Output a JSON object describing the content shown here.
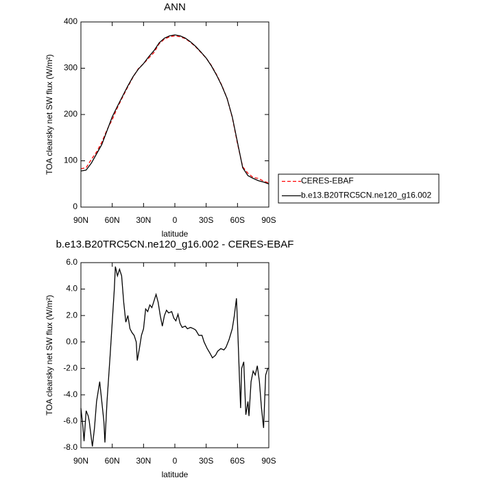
{
  "chart_data": [
    {
      "type": "line",
      "title": "ANN",
      "xlabel": "latitude",
      "ylabel": "TOA clearsky net SW flux (W/m²)",
      "x": [
        90,
        85,
        80,
        75,
        70,
        65,
        60,
        55,
        50,
        45,
        40,
        35,
        30,
        25,
        20,
        15,
        10,
        5,
        0,
        -5,
        -10,
        -15,
        -20,
        -25,
        -30,
        -35,
        -40,
        -45,
        -50,
        -55,
        -60,
        -65,
        -70,
        -75,
        -80,
        -85,
        -90
      ],
      "series": [
        {
          "name": "CERES-EBAF",
          "color": "#ff0000",
          "dash": true,
          "values": [
            83,
            85,
            103,
            119,
            140,
            167,
            189,
            215,
            238,
            260,
            281,
            299,
            310,
            322,
            334,
            353,
            363,
            368,
            370,
            368,
            364,
            356,
            346,
            334,
            322,
            306,
            286,
            263,
            235,
            194,
            137,
            87,
            73,
            64,
            62,
            56,
            52
          ]
        },
        {
          "name": "b.e13.B20TRC5CN.ne120_g16.002",
          "color": "#000000",
          "dash": false,
          "values": [
            78,
            80,
            95,
            115,
            135,
            165,
            195,
            218,
            240,
            262,
            282,
            298,
            310,
            325,
            338,
            355,
            365,
            370,
            372,
            370,
            365,
            357,
            347,
            335,
            322,
            305,
            285,
            262,
            235,
            195,
            140,
            85,
            68,
            62,
            57,
            54,
            50
          ]
        }
      ],
      "xlim": [
        90,
        -90
      ],
      "xticks": [
        {
          "value": 90,
          "label": "90N"
        },
        {
          "value": 60,
          "label": "60N"
        },
        {
          "value": 30,
          "label": "30N"
        },
        0,
        {
          "value": -30,
          "label": "30S"
        },
        {
          "value": -60,
          "label": "60S"
        },
        {
          "value": -90,
          "label": "90S"
        }
      ],
      "ylim": [
        0,
        400
      ],
      "yticks": [
        0,
        100,
        200,
        300,
        400
      ],
      "legend": "outside right"
    },
    {
      "type": "line",
      "title": "b.e13.B20TRC5CN.ne120_g16.002 - CERES-EBAF",
      "xlabel": "latitude",
      "ylabel": "TOA clearsky net SW flux (W/m²)",
      "x": [
        90,
        88,
        87,
        85,
        83,
        82,
        80,
        79,
        77,
        75,
        72,
        70,
        68,
        67,
        65,
        62,
        60,
        58,
        57,
        55,
        53,
        51,
        49,
        47,
        45,
        43,
        41,
        39,
        37,
        36,
        34,
        32,
        30,
        28,
        26,
        24,
        22,
        20,
        18,
        16,
        14,
        12,
        10,
        8,
        6,
        3,
        1,
        -1,
        -3,
        -5,
        -7,
        -10,
        -12,
        -15,
        -18,
        -20,
        -23,
        -26,
        -28,
        -31,
        -34,
        -36,
        -39,
        -41,
        -44,
        -47,
        -49,
        -52,
        -55,
        -57,
        -59,
        -60,
        -62,
        -63,
        -64,
        -66,
        -67,
        -68,
        -70,
        -71,
        -73,
        -75,
        -77,
        -79,
        -81,
        -83,
        -85,
        -87,
        -89,
        -90
      ],
      "series": [
        {
          "color": "#000000",
          "values": [
            -5.0,
            -6.5,
            -7.5,
            -5.2,
            -5.6,
            -6.0,
            -7.3,
            -7.9,
            -6.5,
            -4.5,
            -3.0,
            -4.5,
            -6.0,
            -7.6,
            -4.5,
            -1.0,
            1.5,
            4.0,
            5.7,
            5.0,
            5.5,
            5.0,
            3.0,
            1.5,
            2.0,
            1.0,
            0.7,
            0.5,
            0.0,
            -1.4,
            -0.5,
            0.5,
            1.0,
            2.5,
            2.3,
            2.8,
            2.6,
            3.1,
            3.6,
            3.0,
            2.0,
            1.2,
            2.0,
            2.4,
            2.2,
            2.3,
            1.8,
            1.6,
            2.1,
            1.4,
            1.1,
            1.2,
            1.0,
            1.1,
            1.0,
            0.9,
            0.5,
            0.5,
            0.0,
            -0.5,
            -0.9,
            -1.2,
            -1.0,
            -0.7,
            -0.5,
            -0.6,
            -0.4,
            0.2,
            1.0,
            2.0,
            3.3,
            1.5,
            -3.0,
            -5.0,
            -2.0,
            -1.5,
            -3.5,
            -5.5,
            -4.5,
            -5.6,
            -3.0,
            -2.2,
            -2.5,
            -1.8,
            -3.0,
            -5.0,
            -6.5,
            -2.5,
            -2.0,
            -2.0
          ]
        }
      ],
      "xlim": [
        90,
        -90
      ],
      "xticks": [
        {
          "value": 90,
          "label": "90N"
        },
        {
          "value": 60,
          "label": "60N"
        },
        {
          "value": 30,
          "label": "30N"
        },
        0,
        {
          "value": -30,
          "label": "30S"
        },
        {
          "value": -60,
          "label": "60S"
        },
        {
          "value": -90,
          "label": "90S"
        }
      ],
      "ylim": [
        -8,
        6
      ],
      "yticks": [
        {
          "value": -8,
          "label": "-8.0"
        },
        {
          "value": -6,
          "label": "-6.0"
        },
        {
          "value": -4,
          "label": "-4.0"
        },
        {
          "value": -2,
          "label": "-2.0"
        },
        {
          "value": 0,
          "label": "0.0"
        },
        {
          "value": 2,
          "label": "2.0"
        },
        {
          "value": 4,
          "label": "4.0"
        },
        {
          "value": 6,
          "label": "6.0"
        }
      ]
    }
  ]
}
